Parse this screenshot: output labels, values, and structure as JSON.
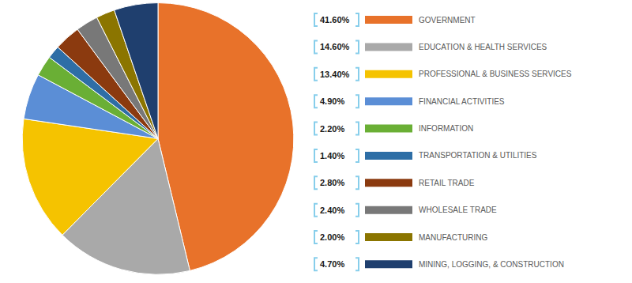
{
  "chart_data": {
    "type": "pie",
    "categories": [
      "GOVERNMENT",
      "EDUCATION & HEALTH SERVICES",
      "PROFESSIONAL & BUSINESS SERVICES",
      "FINANCIAL ACTIVITIES",
      "INFORMATION",
      "TRANSPORTATION & UTILITIES",
      "RETAIL TRADE",
      "WHOLESALE TRADE",
      "MANUFACTURING",
      "MINING, LOGGING, & CONSTRUCTION"
    ],
    "values": [
      41.6,
      14.6,
      13.4,
      4.9,
      2.2,
      1.4,
      2.8,
      2.4,
      2.0,
      4.7
    ],
    "value_labels": [
      "41.60%",
      "14.60%",
      "13.40%",
      "4.90%",
      "2.20%",
      "1.40%",
      "2.80%",
      "2.40%",
      "2.00%",
      "4.70%"
    ],
    "colors": [
      "#E8722A",
      "#A9A9A9",
      "#F5C300",
      "#5B8ED6",
      "#6AAF35",
      "#2E6EA6",
      "#8B3A0F",
      "#787878",
      "#8B7500",
      "#1F3F6E"
    ],
    "legend": "right"
  }
}
